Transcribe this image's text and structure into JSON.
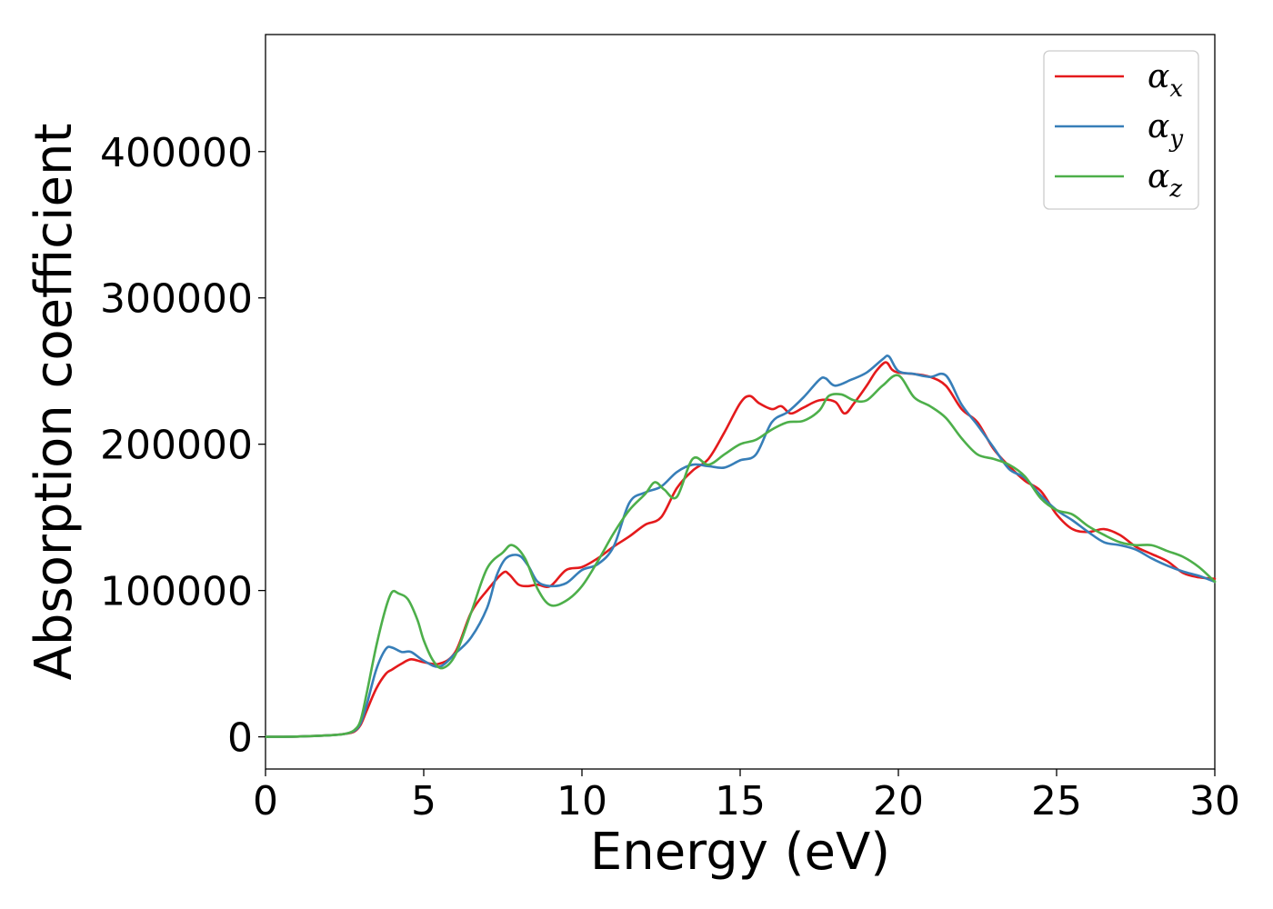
{
  "chart_data": {
    "type": "line",
    "title": "",
    "xlabel": "Energy (eV)",
    "ylabel": "Absorption coefficient",
    "xlim": [
      0,
      30
    ],
    "ylim": [
      -22000,
      480000
    ],
    "xticks": [
      0,
      5,
      10,
      15,
      20,
      25,
      30
    ],
    "yticks": [
      0,
      100000,
      200000,
      300000,
      400000
    ],
    "grid": false,
    "legend_position": "top-right",
    "series": [
      {
        "name": "α",
        "subscript": "x",
        "color": "#e41a1c",
        "x": [
          0,
          1,
          2,
          2.5,
          2.8,
          3.0,
          3.2,
          3.5,
          3.8,
          4.0,
          4.3,
          4.6,
          5.0,
          5.5,
          6.0,
          6.5,
          7.0,
          7.5,
          7.7,
          8.0,
          8.3,
          8.6,
          9.0,
          9.5,
          10.0,
          10.5,
          11.0,
          11.5,
          12.0,
          12.5,
          13.0,
          13.5,
          14.0,
          14.5,
          15.0,
          15.3,
          15.6,
          16.0,
          16.3,
          16.6,
          17.0,
          17.5,
          18.0,
          18.3,
          18.6,
          19.0,
          19.3,
          19.6,
          19.8,
          20.0,
          20.5,
          21.0,
          21.5,
          22.0,
          22.5,
          23.0,
          23.5,
          24.0,
          24.5,
          25.0,
          25.5,
          26.0,
          26.5,
          27.0,
          27.5,
          28.0,
          28.5,
          29.0,
          29.5,
          30.0
        ],
        "values": [
          0,
          200,
          1000,
          2000,
          3500,
          8000,
          18000,
          33000,
          43000,
          46000,
          50000,
          53000,
          51000,
          50000,
          58000,
          85000,
          100000,
          112000,
          111000,
          104000,
          103000,
          104000,
          103000,
          114000,
          116000,
          122000,
          130000,
          137000,
          145000,
          150000,
          170000,
          182000,
          190000,
          208000,
          228000,
          233000,
          228000,
          224000,
          226000,
          221000,
          225000,
          230000,
          229000,
          221000,
          228000,
          240000,
          250000,
          256000,
          251000,
          249000,
          248000,
          246000,
          240000,
          224000,
          215000,
          197000,
          185000,
          175000,
          168000,
          152000,
          142000,
          140000,
          142000,
          138000,
          130000,
          125000,
          120000,
          112000,
          109000,
          108000
        ]
      },
      {
        "name": "α",
        "subscript": "y",
        "color": "#377eb8",
        "x": [
          0,
          1,
          2,
          2.5,
          2.8,
          3.0,
          3.2,
          3.5,
          3.8,
          4.0,
          4.3,
          4.6,
          5.0,
          5.5,
          6.0,
          6.5,
          7.0,
          7.3,
          7.6,
          8.0,
          8.3,
          8.6,
          9.0,
          9.5,
          10.0,
          10.5,
          11.0,
          11.5,
          12.0,
          12.5,
          13.0,
          13.5,
          14.0,
          14.5,
          15.0,
          15.5,
          16.0,
          16.5,
          17.0,
          17.5,
          17.7,
          18.0,
          18.5,
          19.0,
          19.5,
          19.7,
          20.0,
          20.5,
          21.0,
          21.5,
          22.0,
          22.5,
          23.0,
          23.5,
          24.0,
          24.5,
          25.0,
          25.5,
          26.0,
          26.5,
          27.0,
          27.5,
          28.0,
          28.5,
          29.0,
          29.5,
          30.0
        ],
        "values": [
          0,
          200,
          1000,
          2000,
          4000,
          9000,
          22000,
          46000,
          60000,
          61000,
          58000,
          58000,
          52000,
          48000,
          57000,
          68000,
          88000,
          110000,
          122000,
          124000,
          117000,
          106000,
          103000,
          105000,
          114000,
          118000,
          130000,
          160000,
          167000,
          171000,
          181000,
          186000,
          185000,
          184000,
          189000,
          193000,
          215000,
          222000,
          232000,
          244000,
          245000,
          240000,
          244000,
          249000,
          258000,
          260000,
          250000,
          248000,
          246000,
          247000,
          227000,
          213000,
          198000,
          183000,
          177000,
          165000,
          155000,
          148000,
          140000,
          133000,
          131000,
          128000,
          122000,
          117000,
          113000,
          110000,
          106000
        ]
      },
      {
        "name": "α",
        "subscript": "z",
        "color": "#4daf4a",
        "x": [
          0,
          1,
          2,
          2.5,
          2.8,
          3.0,
          3.2,
          3.5,
          3.8,
          4.0,
          4.2,
          4.5,
          4.8,
          5.0,
          5.3,
          5.6,
          6.0,
          6.5,
          7.0,
          7.5,
          7.8,
          8.2,
          8.6,
          9.0,
          9.5,
          10.0,
          10.5,
          11.0,
          11.5,
          12.0,
          12.3,
          12.6,
          13.0,
          13.5,
          14.0,
          14.5,
          15.0,
          15.5,
          16.0,
          16.5,
          17.0,
          17.5,
          17.8,
          18.2,
          18.6,
          19.0,
          19.5,
          20.0,
          20.5,
          21.0,
          21.5,
          22.0,
          22.5,
          23.0,
          23.5,
          24.0,
          24.5,
          25.0,
          25.5,
          26.0,
          26.5,
          27.0,
          27.5,
          28.0,
          28.5,
          29.0,
          29.5,
          30.0
        ],
        "values": [
          0,
          200,
          1000,
          2000,
          4500,
          11000,
          30000,
          62000,
          88000,
          99000,
          98000,
          94000,
          80000,
          66000,
          52000,
          47000,
          56000,
          85000,
          115000,
          126000,
          131000,
          122000,
          101000,
          90000,
          93000,
          103000,
          120000,
          139000,
          155000,
          166000,
          174000,
          169000,
          164000,
          190000,
          186000,
          193000,
          200000,
          203000,
          210000,
          215000,
          216000,
          223000,
          233000,
          234000,
          230000,
          230000,
          240000,
          247000,
          232000,
          226000,
          218000,
          204000,
          193000,
          190000,
          186000,
          178000,
          163000,
          155000,
          152000,
          144000,
          138000,
          133000,
          131000,
          131000,
          127000,
          123000,
          116000,
          106000
        ]
      }
    ]
  }
}
